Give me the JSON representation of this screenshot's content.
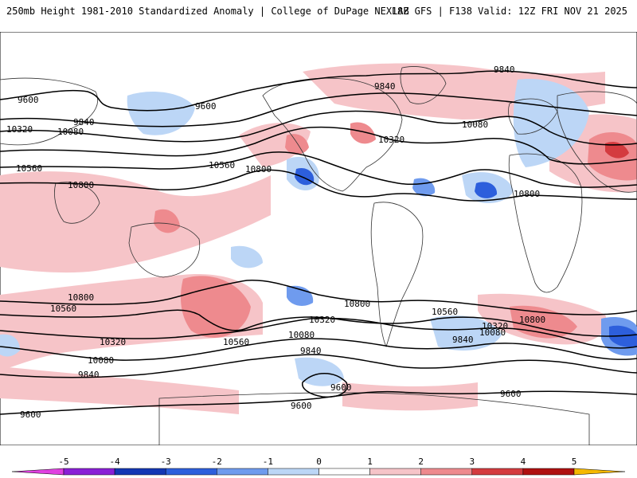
{
  "header": {
    "title": "250mb Height 1981-2010 Standardized Anomaly | College of DuPage NEXLAB",
    "run_info": "18Z GFS | F138 Valid: 12Z FRI NOV 21 2025"
  },
  "contour_labels": {
    "nh_9600": "9600",
    "nh_9840": "9840",
    "nh_10080": "10080",
    "nh_10320": "10320",
    "nh_10560": "10560",
    "nh_10800": "10800",
    "sh_10800": "10800",
    "sh_10560": "10560",
    "sh_10320": "10320",
    "sh_10080": "10080",
    "sh_9840": "9840",
    "sh_9600": "9600"
  },
  "colorbar": {
    "ticks": [
      "-5",
      "-4",
      "-3",
      "-2",
      "-1",
      "0",
      "1",
      "2",
      "3",
      "4",
      "5"
    ],
    "colors": [
      "#8a1fd6",
      "#1437b4",
      "#2d5fdc",
      "#6f9bee",
      "#bcd6f6",
      "#ffffff",
      "#f6c4c8",
      "#ee8a8e",
      "#d43b3f",
      "#b01010",
      "#f08a00"
    ],
    "left_triangle_color": "#e040e0",
    "right_triangle_color": "#f5b800"
  }
}
